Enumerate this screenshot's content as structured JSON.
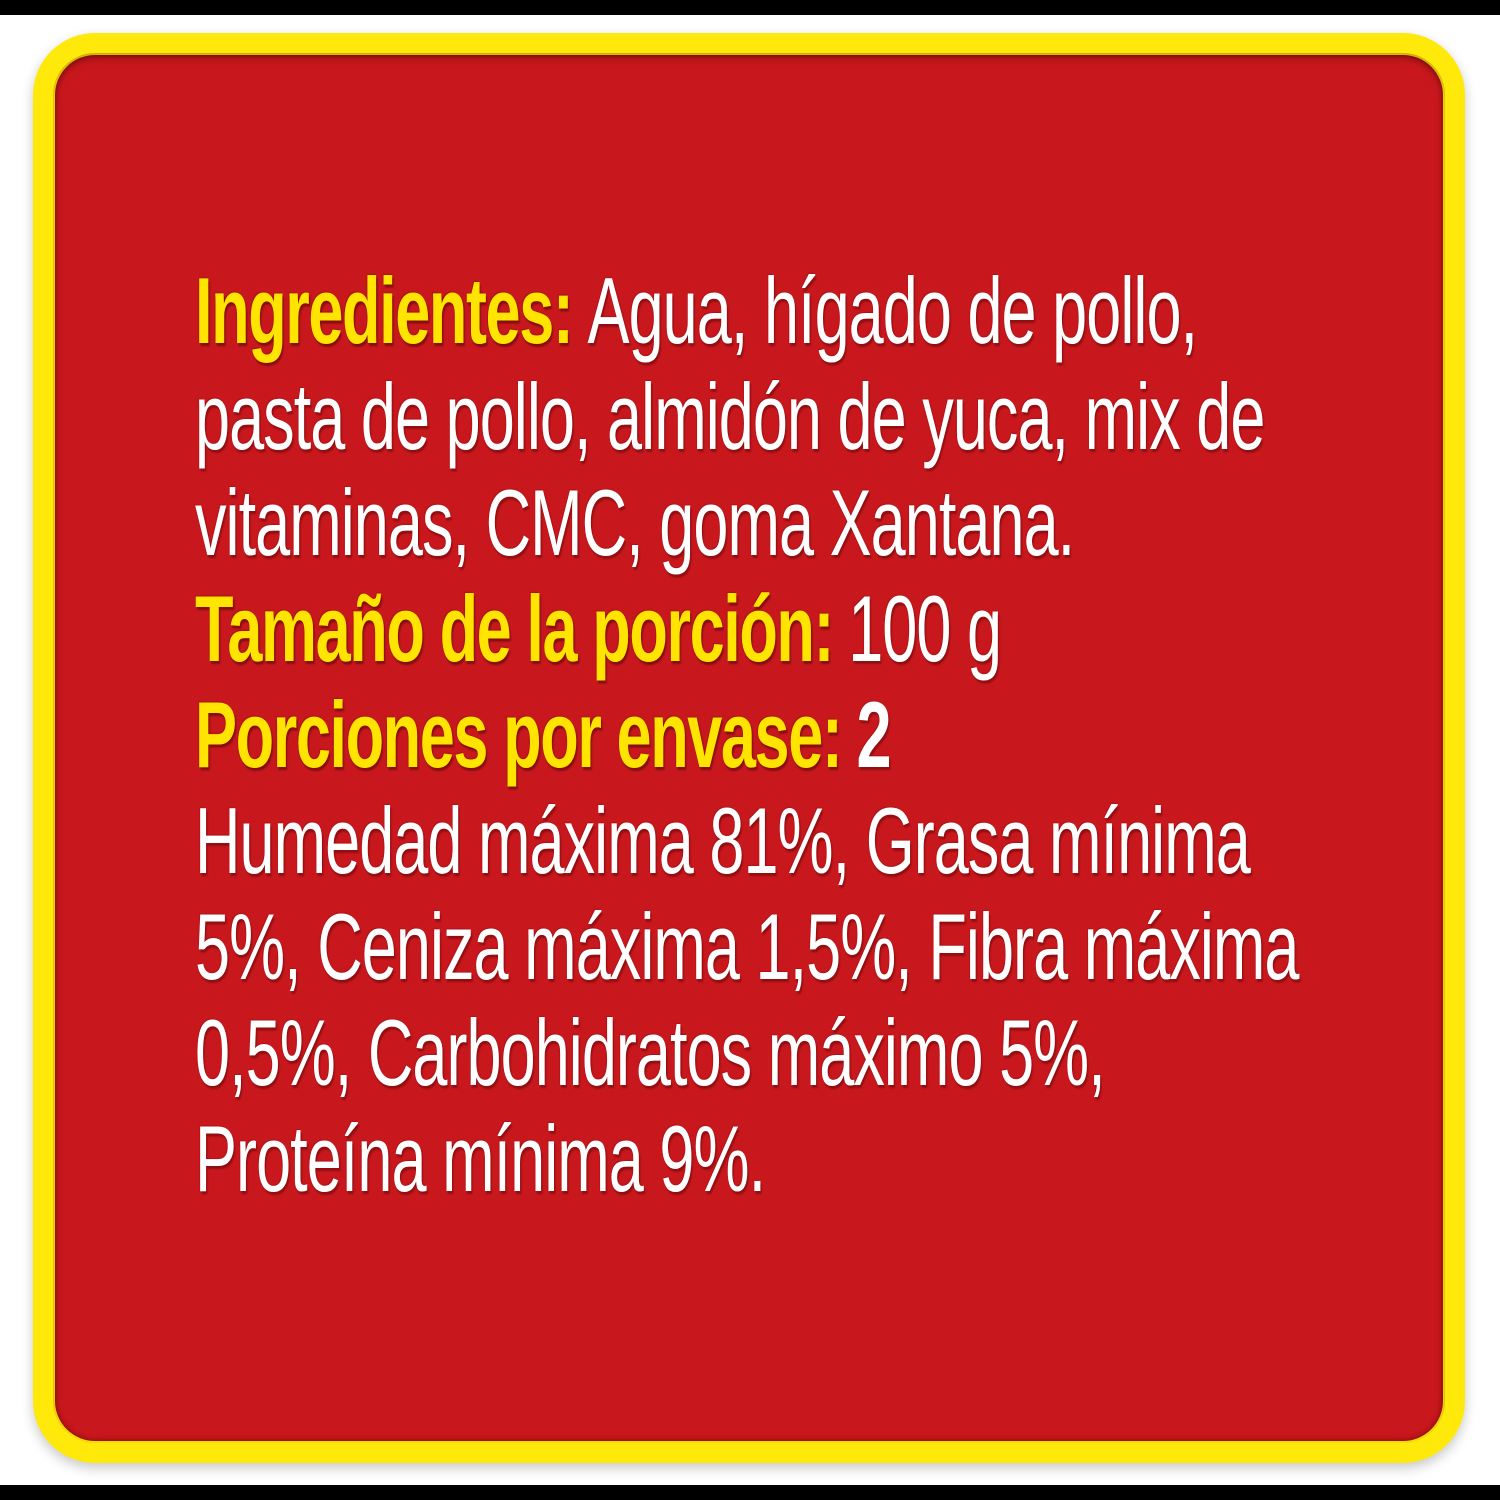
{
  "colors": {
    "page-bg": "#ffffff",
    "edge-bar": "#000000",
    "panel-red": "#c8181d",
    "panel-yellow": "#ffe90a",
    "heading-yellow": "#ffe400",
    "body-white": "#ffffff"
  },
  "label": {
    "ingredients": {
      "heading": "Ingredientes:",
      "line1_rest": "Agua, hígado de pollo,",
      "line2": "pasta de pollo, almidón de yuca, mix de",
      "line3": "vitaminas, CMC, goma Xantana."
    },
    "serving_size": {
      "heading": "Tamaño de la porción:",
      "value": "100 g"
    },
    "portions_per_pack": {
      "heading": "Porciones por envase:",
      "value": "2"
    },
    "guaranteed_analysis": {
      "line1": "Humedad máxima 81%, Grasa mínima",
      "line2": "5%, Ceniza máxima 1,5%, Fibra máxima",
      "line3": "0,5%, Carbohidratos máximo 5%,",
      "line4": "Proteína mínima 9%."
    }
  }
}
